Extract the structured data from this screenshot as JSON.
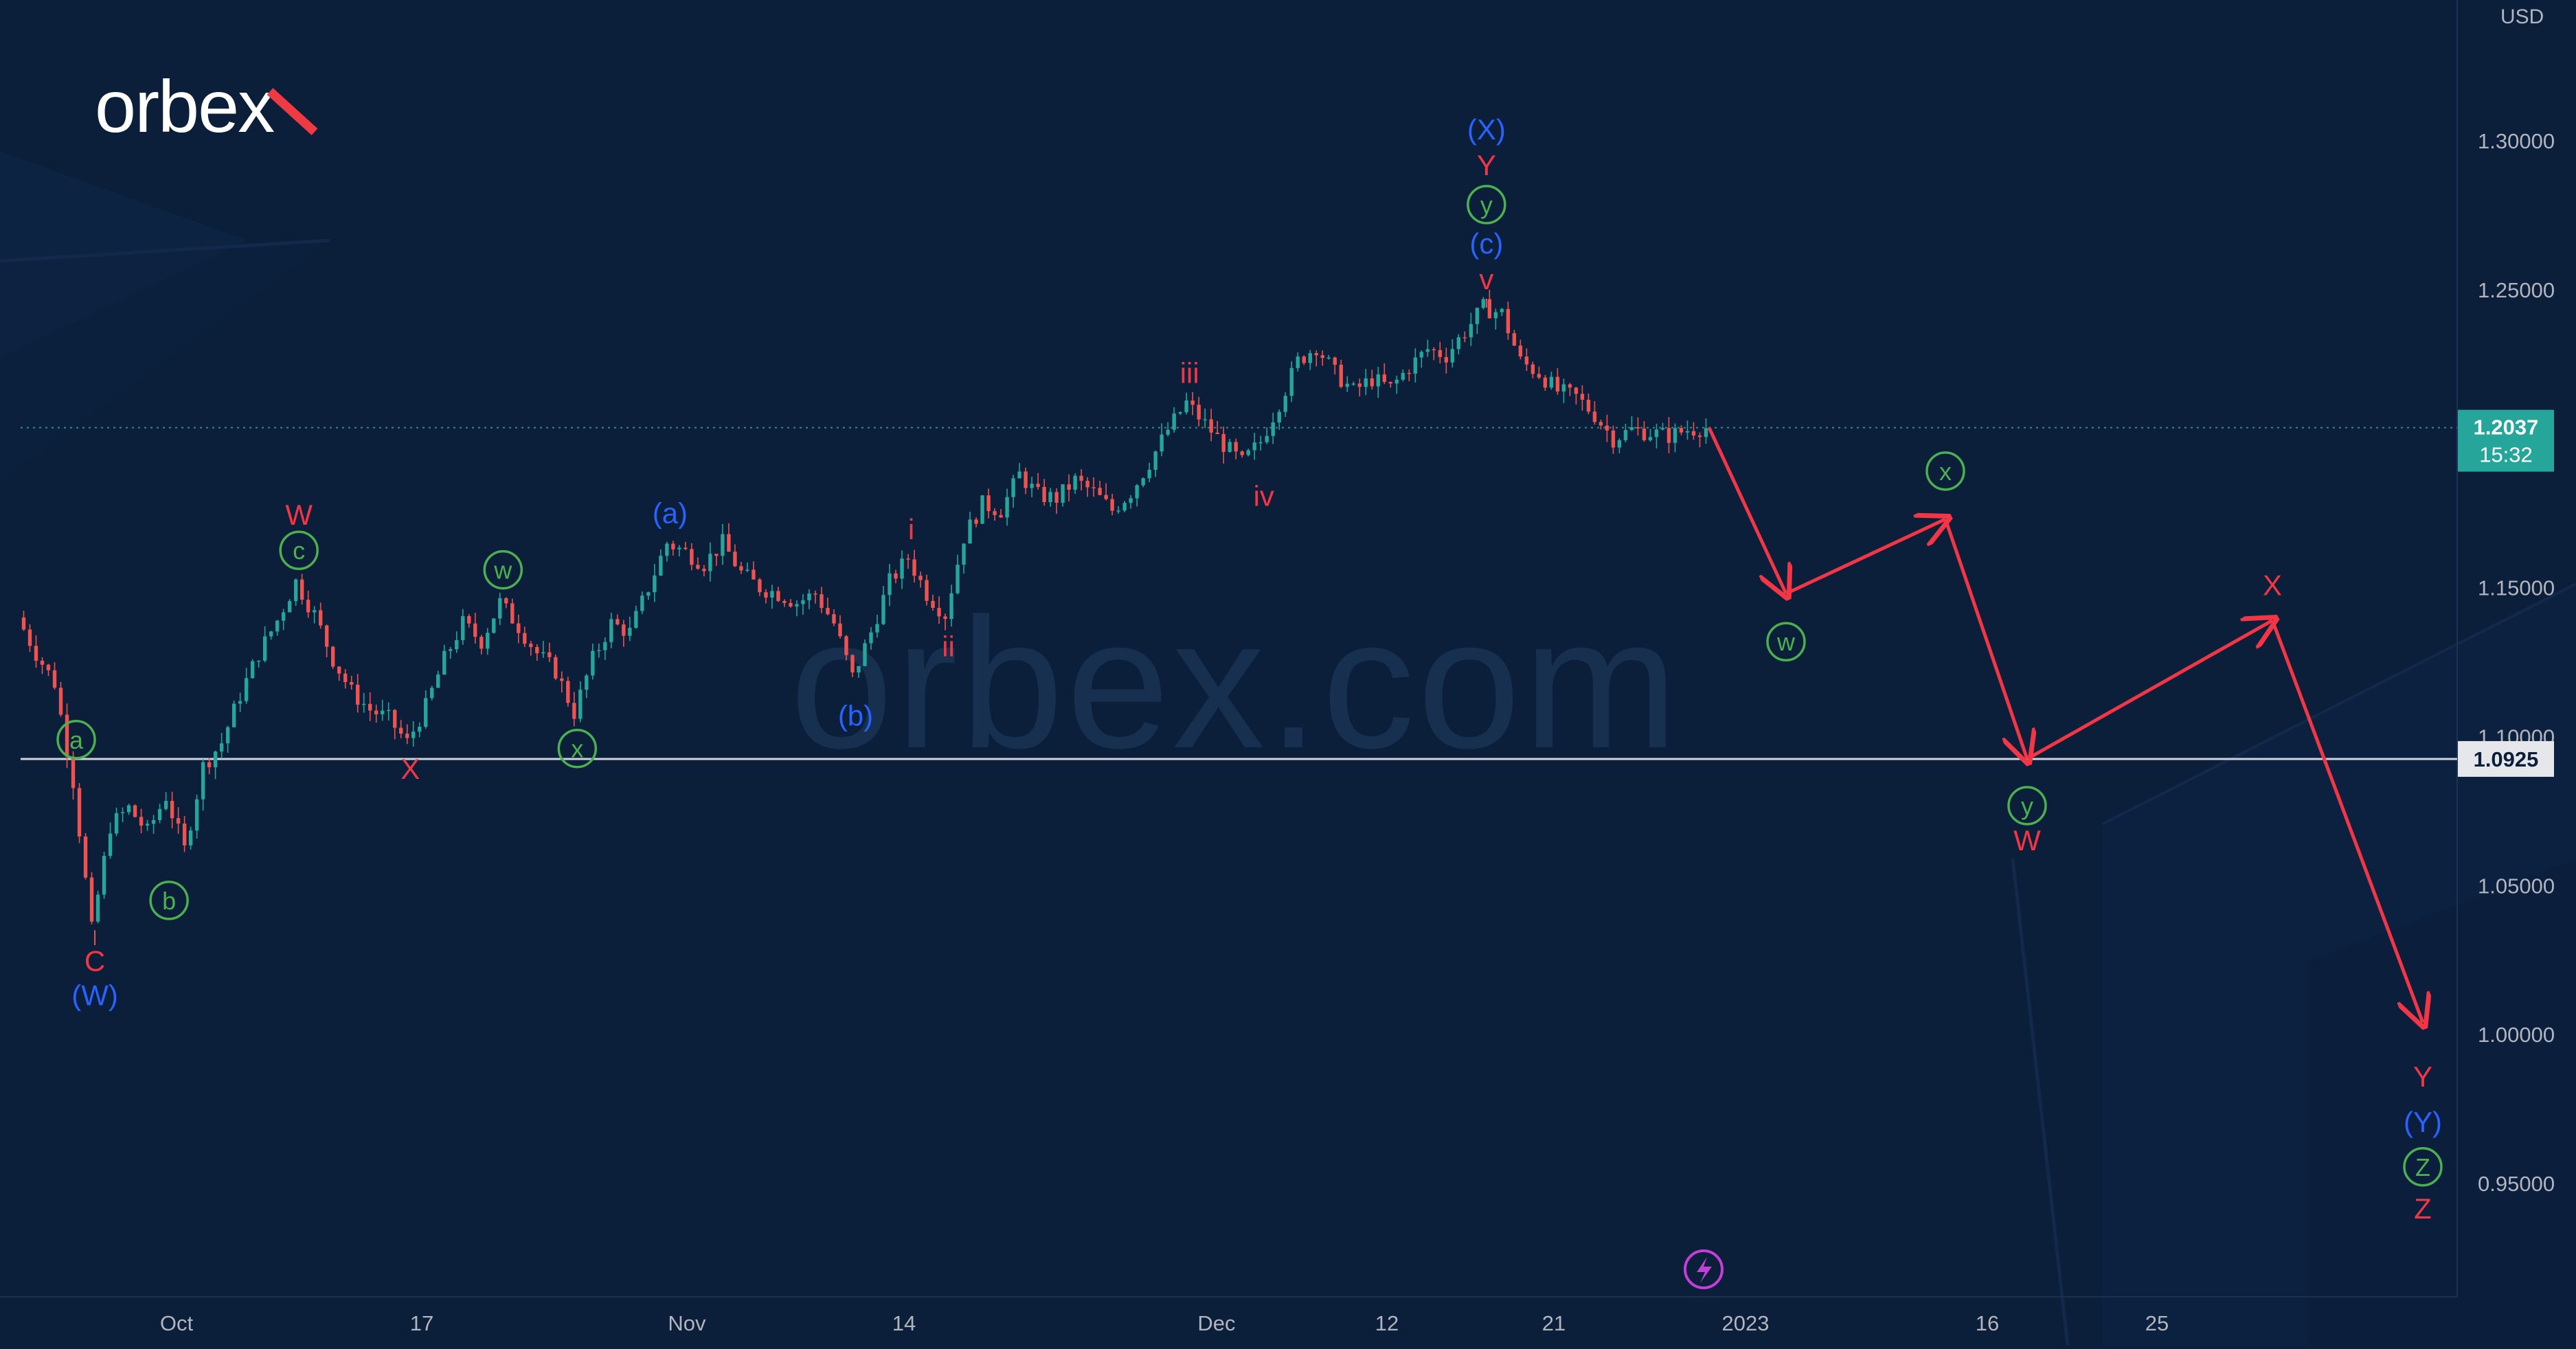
{
  "brand": {
    "logo_text": "orbex",
    "watermark": "orbex.com"
  },
  "colors": {
    "background": "#0b1e3a",
    "candle_up": "#26a69a",
    "candle_down": "#ef5350",
    "wave_red": "#f23645",
    "wave_blue": "#2962ff",
    "wave_green": "#4caf50",
    "forecast": "#f23645",
    "price_badge": "#26a69a",
    "axis_text": "#b2b5be"
  },
  "chart_data": {
    "type": "candlestick",
    "currency": "USD",
    "y_ticks": [
      "1.30000",
      "1.25000",
      "1.15000",
      "1.10000",
      "1.05000",
      "1.00000",
      "0.95000"
    ],
    "x_ticks": [
      "Oct",
      "17",
      "Nov",
      "14",
      "Dec",
      "12",
      "21",
      "2023",
      "16",
      "25"
    ],
    "last_price": {
      "value": "1.2037",
      "countdown": "15:32"
    },
    "support_level": {
      "value": "1.0925"
    },
    "price_path": [
      [
        1.14,
        6
      ],
      [
        1.128,
        4
      ],
      [
        1.118,
        3
      ],
      [
        1.085,
        3
      ],
      [
        1.035,
        2
      ],
      [
        1.07,
        3
      ],
      [
        1.076,
        3
      ],
      [
        1.068,
        3
      ],
      [
        1.08,
        2
      ],
      [
        1.062,
        3
      ],
      [
        1.09,
        3
      ],
      [
        1.098,
        2
      ],
      [
        1.114,
        3
      ],
      [
        1.128,
        3
      ],
      [
        1.139,
        3
      ],
      [
        1.152,
        2
      ],
      [
        1.141,
        3
      ],
      [
        1.126,
        3
      ],
      [
        1.115,
        3
      ],
      [
        1.109,
        3
      ],
      [
        1.106,
        3
      ],
      [
        1.098,
        2
      ],
      [
        1.11,
        3
      ],
      [
        1.126,
        3
      ],
      [
        1.138,
        3
      ],
      [
        1.132,
        3
      ],
      [
        1.145,
        2
      ],
      [
        1.137,
        3
      ],
      [
        1.128,
        3
      ],
      [
        1.122,
        3
      ],
      [
        1.108,
        2
      ],
      [
        1.126,
        3
      ],
      [
        1.138,
        3
      ],
      [
        1.135,
        3
      ],
      [
        1.15,
        2
      ],
      [
        1.165,
        3
      ],
      [
        1.162,
        3
      ],
      [
        1.158,
        3
      ],
      [
        1.165,
        3
      ],
      [
        1.155,
        3
      ],
      [
        1.15,
        3
      ],
      [
        1.148,
        3
      ],
      [
        1.145,
        3
      ],
      [
        1.148,
        3
      ],
      [
        1.138,
        3
      ],
      [
        1.12,
        2
      ],
      [
        1.135,
        3
      ],
      [
        1.152,
        3
      ],
      [
        1.16,
        2
      ],
      [
        1.148,
        3
      ],
      [
        1.141,
        3
      ],
      [
        1.167,
        3
      ],
      [
        1.178,
        3
      ],
      [
        1.176,
        3
      ],
      [
        1.188,
        3
      ],
      [
        1.181,
        3
      ],
      [
        1.18,
        3
      ],
      [
        1.186,
        3
      ],
      [
        1.182,
        3
      ],
      [
        1.176,
        3
      ],
      [
        1.182,
        3
      ],
      [
        1.192,
        3
      ],
      [
        1.203,
        3
      ],
      [
        1.212,
        2
      ],
      [
        1.205,
        3
      ],
      [
        1.198,
        3
      ],
      [
        1.192,
        3
      ],
      [
        1.199,
        3
      ],
      [
        1.212,
        3
      ],
      [
        1.226,
        3
      ],
      [
        1.231,
        2
      ],
      [
        1.222,
        3
      ],
      [
        1.216,
        3
      ],
      [
        1.22,
        3
      ],
      [
        1.217,
        3
      ],
      [
        1.224,
        3
      ],
      [
        1.23,
        3
      ],
      [
        1.228,
        3
      ],
      [
        1.236,
        3
      ],
      [
        1.244,
        3
      ],
      [
        1.242,
        3
      ],
      [
        1.226,
        3
      ],
      [
        1.222,
        3
      ],
      [
        1.216,
        3
      ],
      [
        1.214,
        3
      ],
      [
        1.208,
        3
      ],
      [
        1.2,
        3
      ],
      [
        1.203,
        3
      ],
      [
        1.202,
        3
      ],
      [
        1.201,
        3
      ],
      [
        1.203,
        3
      ],
      [
        1.2037,
        2
      ]
    ],
    "forecast_path": [
      {
        "wave": "w",
        "price": 1.148
      },
      {
        "wave": "x",
        "price": 1.173
      },
      {
        "wave": "y",
        "price": 1.0925
      },
      {
        "wave": "X",
        "price": 1.139
      },
      {
        "wave": "Y",
        "price": 1.004
      }
    ],
    "wave_labels": [
      {
        "text": "C",
        "color": "red",
        "circled": false,
        "bar": 4,
        "price": 1.034,
        "offset": 42
      },
      {
        "text": "(W)",
        "color": "blue",
        "circled": false,
        "bar": 4,
        "price": 1.034,
        "offset": 92
      },
      {
        "text": "a",
        "color": "green",
        "circled": true,
        "bar": 3,
        "price": 1.087,
        "offset": -52
      },
      {
        "text": "b",
        "color": "green",
        "circled": true,
        "bar": 8,
        "price": 1.06,
        "offset": 65
      },
      {
        "text": "c",
        "color": "green",
        "circled": true,
        "bar": 15,
        "price": 1.151,
        "offset": -50
      },
      {
        "text": "W",
        "color": "red",
        "circled": false,
        "bar": 15,
        "price": 1.151,
        "offset": -100
      },
      {
        "text": "X",
        "color": "red",
        "circled": false,
        "bar": 21,
        "price": 1.098,
        "offset": 40
      },
      {
        "text": "w",
        "color": "green",
        "circled": true,
        "bar": 26,
        "price": 1.144,
        "offset": -52
      },
      {
        "text": "x",
        "color": "green",
        "circled": true,
        "bar": 30,
        "price": 1.108,
        "offset": 52
      },
      {
        "text": "(a)",
        "color": "blue",
        "circled": false,
        "bar": 35,
        "price": 1.165,
        "offset": -42
      },
      {
        "text": "(b)",
        "color": "blue",
        "circled": false,
        "bar": 45,
        "price": 1.12,
        "offset": 58
      },
      {
        "text": "i",
        "color": "red",
        "circled": false,
        "bar": 48,
        "price": 1.16,
        "offset": -40
      },
      {
        "text": "ii",
        "color": "red",
        "circled": false,
        "bar": 50,
        "price": 1.141,
        "offset": 48
      },
      {
        "text": "iii",
        "color": "red",
        "circled": false,
        "bar": 63,
        "price": 1.212,
        "offset": -42
      },
      {
        "text": "iv",
        "color": "red",
        "circled": false,
        "bar": 67,
        "price": 1.192,
        "offset": 50
      },
      {
        "text": "v",
        "color": "red",
        "circled": false,
        "bar": 79,
        "price": 1.244,
        "offset": -40
      },
      {
        "text": "(c)",
        "color": "blue",
        "circled": false,
        "bar": 79,
        "price": 1.244,
        "offset": -92
      },
      {
        "text": "y",
        "color": "green",
        "circled": true,
        "bar": 79,
        "price": 1.244,
        "offset": -150
      },
      {
        "text": "Y",
        "color": "red",
        "circled": false,
        "bar": 79,
        "price": 1.244,
        "offset": -206
      },
      {
        "text": "(X)",
        "color": "blue",
        "circled": false,
        "bar": 79,
        "price": 1.244,
        "offset": -258
      },
      {
        "text": "w",
        "color": "green",
        "circled": true,
        "forecast": 0,
        "offset": 70
      },
      {
        "text": "x",
        "color": "green",
        "circled": true,
        "forecast": 1,
        "offset": -70
      },
      {
        "text": "y",
        "color": "green",
        "circled": true,
        "forecast": 2,
        "offset": 68
      },
      {
        "text": "W",
        "color": "red",
        "circled": false,
        "forecast": 2,
        "offset": 120
      },
      {
        "text": "X",
        "color": "red",
        "circled": false,
        "forecast": 3,
        "offset": -50
      },
      {
        "text": "Y",
        "color": "red",
        "circled": false,
        "forecast": 4,
        "offset": 80
      },
      {
        "text": "(Y)",
        "color": "blue",
        "circled": false,
        "forecast": 4,
        "offset": 146
      },
      {
        "text": "Z",
        "color": "green",
        "circled": true,
        "forecast": 4,
        "offset": 210
      },
      {
        "text": "Z",
        "color": "red",
        "circled": false,
        "forecast": 4,
        "offset": 272
      }
    ]
  }
}
